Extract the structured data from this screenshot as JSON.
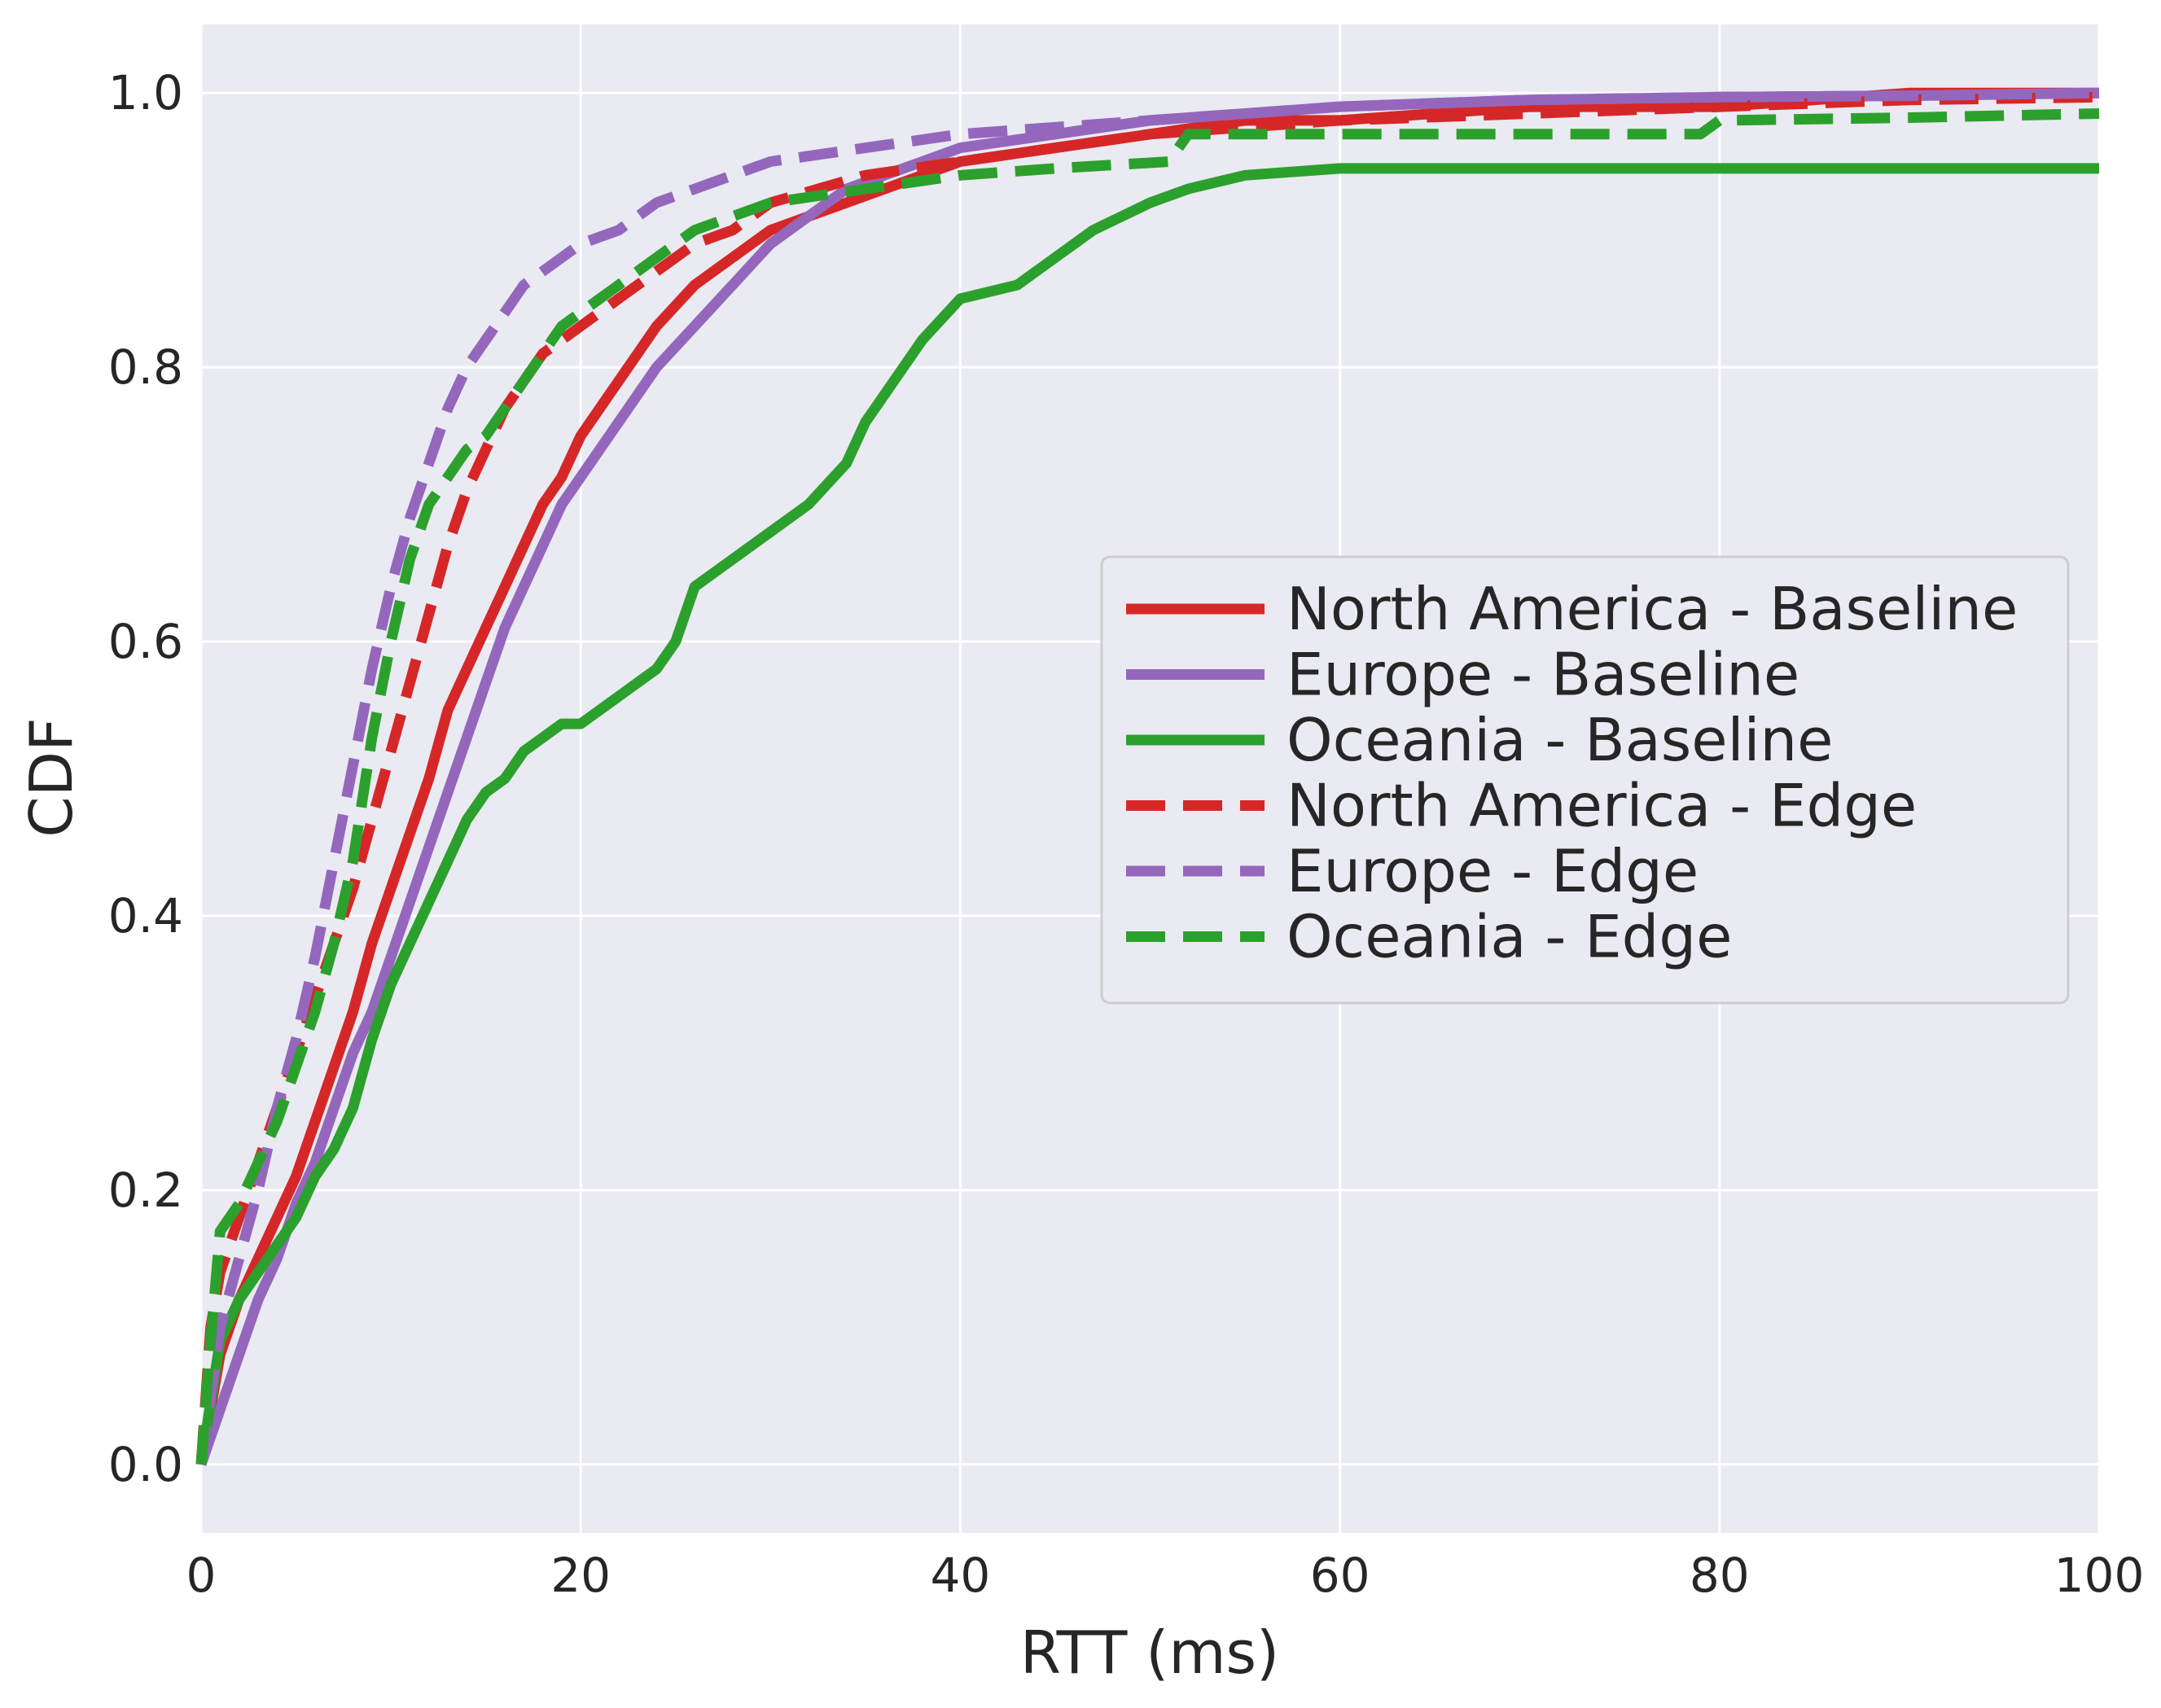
{
  "chart_data": {
    "type": "line",
    "title": "",
    "xlabel": "RTT (ms)",
    "ylabel": "CDF",
    "xlim": [
      0,
      100
    ],
    "ylim": [
      -0.05,
      1.05
    ],
    "xticks": [
      0,
      20,
      40,
      60,
      80,
      100
    ],
    "xtick_labels": [
      "0",
      "20",
      "40",
      "60",
      "80",
      "100"
    ],
    "yticks": [
      0.0,
      0.2,
      0.4,
      0.6,
      0.8,
      1.0
    ],
    "ytick_labels": [
      "0.0",
      "0.2",
      "0.4",
      "0.6",
      "0.8",
      "1.0"
    ],
    "grid": true,
    "legend_position": "center-right",
    "series": [
      {
        "name": "North America - Baseline",
        "color": "#d62728",
        "dash": "solid",
        "x": [
          0,
          1,
          2,
          3,
          4,
          5,
          6,
          7,
          8,
          9,
          10,
          11,
          12,
          13,
          14,
          15,
          16,
          17,
          18,
          19,
          20,
          22,
          24,
          26,
          28,
          30,
          32,
          34,
          36,
          38,
          40,
          45,
          50,
          55,
          60,
          70,
          80,
          90,
          100
        ],
        "y": [
          0.0,
          0.08,
          0.12,
          0.15,
          0.18,
          0.21,
          0.25,
          0.29,
          0.33,
          0.38,
          0.42,
          0.46,
          0.5,
          0.55,
          0.58,
          0.61,
          0.64,
          0.67,
          0.7,
          0.72,
          0.75,
          0.79,
          0.83,
          0.86,
          0.88,
          0.9,
          0.91,
          0.92,
          0.93,
          0.94,
          0.95,
          0.96,
          0.97,
          0.98,
          0.98,
          0.99,
          0.99,
          1.0,
          1.0
        ]
      },
      {
        "name": "Europe - Baseline",
        "color": "#9467bd",
        "dash": "solid",
        "x": [
          0,
          1,
          2,
          3,
          4,
          5,
          6,
          7,
          8,
          9,
          10,
          11,
          12,
          13,
          14,
          15,
          16,
          17,
          18,
          19,
          20,
          22,
          24,
          26,
          28,
          30,
          32,
          34,
          36,
          38,
          40,
          45,
          50,
          55,
          60,
          70,
          80,
          90,
          100
        ],
        "y": [
          0.0,
          0.04,
          0.08,
          0.12,
          0.15,
          0.19,
          0.22,
          0.26,
          0.3,
          0.33,
          0.37,
          0.41,
          0.45,
          0.49,
          0.53,
          0.57,
          0.61,
          0.64,
          0.67,
          0.7,
          0.72,
          0.76,
          0.8,
          0.83,
          0.86,
          0.89,
          0.91,
          0.93,
          0.94,
          0.95,
          0.96,
          0.97,
          0.98,
          0.985,
          0.99,
          0.995,
          0.997,
          0.998,
          1.0
        ]
      },
      {
        "name": "Oceania - Baseline",
        "color": "#2ca02c",
        "dash": "solid",
        "x": [
          0,
          1,
          2,
          3,
          4,
          5,
          6,
          7,
          8,
          9,
          10,
          11,
          12,
          13,
          14,
          15,
          16,
          17,
          18,
          19,
          20,
          22,
          24,
          25,
          26,
          28,
          30,
          32,
          34,
          35,
          36,
          37,
          38,
          40,
          43,
          45,
          47,
          50,
          52,
          55,
          60,
          70,
          80,
          90,
          100
        ],
        "y": [
          0.0,
          0.09,
          0.12,
          0.14,
          0.16,
          0.18,
          0.21,
          0.23,
          0.26,
          0.31,
          0.35,
          0.38,
          0.41,
          0.44,
          0.47,
          0.49,
          0.5,
          0.52,
          0.53,
          0.54,
          0.54,
          0.56,
          0.58,
          0.6,
          0.64,
          0.66,
          0.68,
          0.7,
          0.73,
          0.76,
          0.78,
          0.8,
          0.82,
          0.85,
          0.86,
          0.88,
          0.9,
          0.92,
          0.93,
          0.94,
          0.945,
          0.945,
          0.945,
          0.945,
          0.945
        ]
      },
      {
        "name": "North America - Edge",
        "color": "#d62728",
        "dash": "dashed",
        "x": [
          0,
          0.5,
          1,
          2,
          3,
          4,
          5,
          6,
          7,
          8,
          9,
          10,
          11,
          12,
          13,
          14,
          15,
          16,
          17,
          18,
          19,
          20,
          22,
          24,
          26,
          28,
          30,
          35,
          40,
          45,
          50,
          55,
          60,
          70,
          80,
          90,
          100
        ],
        "y": [
          0.0,
          0.1,
          0.14,
          0.18,
          0.22,
          0.26,
          0.3,
          0.34,
          0.38,
          0.42,
          0.47,
          0.52,
          0.57,
          0.62,
          0.67,
          0.71,
          0.74,
          0.77,
          0.79,
          0.81,
          0.82,
          0.83,
          0.85,
          0.87,
          0.89,
          0.9,
          0.92,
          0.94,
          0.95,
          0.96,
          0.97,
          0.975,
          0.98,
          0.985,
          0.99,
          0.995,
          0.997
        ]
      },
      {
        "name": "Europe - Edge",
        "color": "#9467bd",
        "dash": "dashed",
        "x": [
          0,
          1,
          2,
          3,
          4,
          5,
          6,
          7,
          8,
          9,
          10,
          11,
          12,
          13,
          14,
          15,
          16,
          17,
          18,
          19,
          20,
          22,
          24,
          26,
          28,
          30,
          35,
          40,
          45,
          50,
          55,
          60,
          70,
          80,
          90,
          100
        ],
        "y": [
          0.0,
          0.1,
          0.15,
          0.2,
          0.26,
          0.31,
          0.37,
          0.44,
          0.51,
          0.58,
          0.64,
          0.69,
          0.73,
          0.77,
          0.8,
          0.82,
          0.84,
          0.86,
          0.87,
          0.88,
          0.89,
          0.9,
          0.92,
          0.93,
          0.94,
          0.95,
          0.96,
          0.97,
          0.975,
          0.98,
          0.985,
          0.99,
          0.995,
          0.997,
          0.998,
          1.0
        ]
      },
      {
        "name": "Oceania - Edge",
        "color": "#2ca02c",
        "dash": "dashed",
        "x": [
          0,
          0.5,
          1,
          2,
          3,
          4,
          5,
          6,
          7,
          8,
          9,
          10,
          11,
          12,
          13,
          14,
          15,
          16,
          17,
          18,
          19,
          20,
          22,
          24,
          26,
          28,
          30,
          35,
          40,
          45,
          51,
          52,
          60,
          70,
          79,
          80,
          90,
          100
        ],
        "y": [
          0.0,
          0.09,
          0.17,
          0.19,
          0.22,
          0.25,
          0.29,
          0.33,
          0.38,
          0.44,
          0.53,
          0.6,
          0.66,
          0.7,
          0.72,
          0.74,
          0.75,
          0.77,
          0.79,
          0.81,
          0.83,
          0.84,
          0.86,
          0.88,
          0.9,
          0.91,
          0.92,
          0.93,
          0.94,
          0.945,
          0.95,
          0.97,
          0.97,
          0.97,
          0.97,
          0.98,
          0.982,
          0.985
        ]
      }
    ]
  }
}
